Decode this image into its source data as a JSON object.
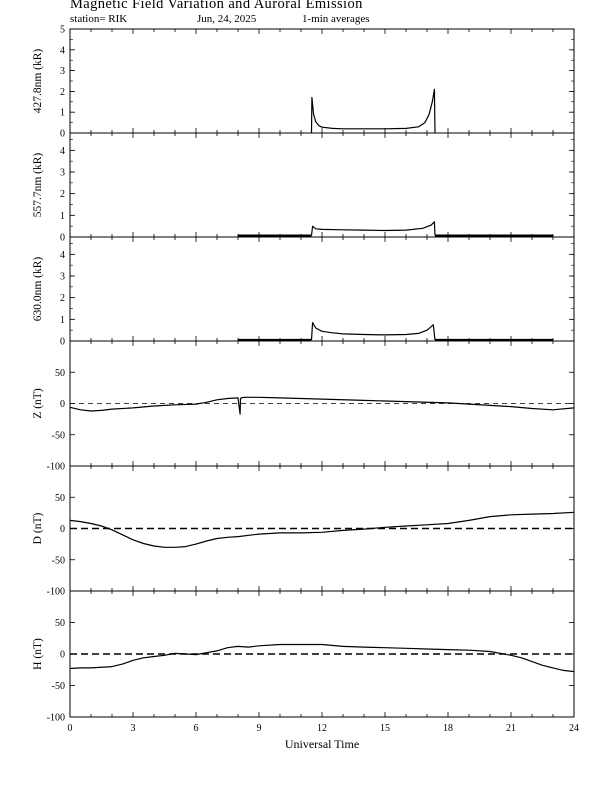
{
  "header": {
    "title": "Magnetic Field Variation and Auroral Emission",
    "station": "station= RIK",
    "date": "Jun, 24, 2025",
    "averaging": "1-min averages"
  },
  "chart_data": {
    "type": "line",
    "xlabel": "Universal Time",
    "x_ticks": [
      0,
      3,
      6,
      9,
      12,
      15,
      18,
      21,
      24
    ],
    "xlim": [
      0,
      24
    ],
    "panels": [
      {
        "id": "427",
        "ylabel": "427.8nm (kR)",
        "ylim": [
          0,
          5
        ],
        "y_ticks": [
          0,
          1,
          2,
          3,
          4,
          5
        ],
        "dashed_zero": false,
        "series": [
          {
            "x": [
              11.5,
              11.52,
              11.6,
              11.7,
              11.85,
              12.0,
              12.5,
              13,
              14,
              15,
              16,
              16.6,
              16.9,
              17.1,
              17.25,
              17.35,
              17.38
            ],
            "y": [
              0,
              1.7,
              0.9,
              0.55,
              0.35,
              0.28,
              0.22,
              0.2,
              0.2,
              0.2,
              0.22,
              0.3,
              0.5,
              0.9,
              1.5,
              2.1,
              0
            ]
          }
        ]
      },
      {
        "id": "557",
        "ylabel": "557.7nm (kR)",
        "ylim": [
          0,
          4.8
        ],
        "y_ticks": [
          0,
          1,
          2,
          3,
          4
        ],
        "dashed_zero": false,
        "series": [
          {
            "x": [
              8.0,
              11.5
            ],
            "y": [
              0.07,
              0.07
            ]
          },
          {
            "x": [
              11.5,
              11.55,
              11.7,
              12,
              13,
              14,
              15,
              16,
              16.8,
              17.2,
              17.35,
              17.38
            ],
            "y": [
              0.07,
              0.5,
              0.38,
              0.35,
              0.33,
              0.32,
              0.3,
              0.32,
              0.4,
              0.55,
              0.7,
              0.07
            ]
          },
          {
            "x": [
              17.38,
              23.0
            ],
            "y": [
              0.07,
              0.07
            ]
          }
        ]
      },
      {
        "id": "630",
        "ylabel": "630.0nm (kR)",
        "ylim": [
          0,
          4.8
        ],
        "y_ticks": [
          0,
          1,
          2,
          3,
          4
        ],
        "dashed_zero": false,
        "series": [
          {
            "x": [
              8.0,
              11.5
            ],
            "y": [
              0.05,
              0.05
            ]
          },
          {
            "x": [
              11.5,
              11.55,
              11.7,
              12,
              12.5,
              13,
              14,
              15,
              16,
              16.6,
              17.0,
              17.3,
              17.38
            ],
            "y": [
              0.05,
              0.85,
              0.6,
              0.45,
              0.38,
              0.33,
              0.3,
              0.28,
              0.3,
              0.35,
              0.5,
              0.75,
              0.05
            ]
          },
          {
            "x": [
              17.38,
              23.0
            ],
            "y": [
              0.05,
              0.05
            ]
          }
        ]
      },
      {
        "id": "Z",
        "ylabel": "Z (nT)",
        "ylim": [
          -100,
          100
        ],
        "y_ticks": [
          -100,
          -50,
          0,
          50
        ],
        "dashed_zero": true,
        "dash_style": "thin",
        "series": [
          {
            "x": [
              0,
              0.5,
              1,
              1.5,
              2,
              3,
              4,
              5,
              6,
              6.5,
              7,
              7.5,
              8,
              8.1,
              8.12,
              8.15,
              8.3,
              9,
              10,
              11,
              12,
              14,
              16,
              18,
              19,
              20,
              21,
              22,
              23,
              24
            ],
            "y": [
              -6,
              -10,
              -12,
              -11,
              -9,
              -7,
              -4,
              -2,
              -1,
              2,
              6,
              8,
              9,
              -17,
              8,
              9,
              10,
              10,
              9,
              8,
              7,
              5,
              3,
              1,
              -1,
              -3,
              -5,
              -8,
              -10,
              -7
            ]
          }
        ]
      },
      {
        "id": "D",
        "ylabel": "D (nT)",
        "ylim": [
          -100,
          100
        ],
        "y_ticks": [
          -100,
          -50,
          0,
          50
        ],
        "dashed_zero": true,
        "dash_style": "thick",
        "series": [
          {
            "x": [
              0,
              0.5,
              1,
              1.5,
              2,
              2.5,
              3,
              3.5,
              4,
              4.5,
              5,
              5.5,
              6,
              6.5,
              7,
              7.5,
              8,
              9,
              10,
              11,
              12,
              13,
              14,
              15,
              16,
              17,
              18,
              19,
              20,
              21,
              22,
              23,
              24
            ],
            "y": [
              13,
              11,
              8,
              4,
              -2,
              -10,
              -18,
              -24,
              -28,
              -30,
              -30,
              -29,
              -25,
              -20,
              -16,
              -14,
              -13,
              -9,
              -7,
              -7,
              -6,
              -3,
              -1,
              2,
              4,
              6,
              8,
              13,
              19,
              22,
              23,
              24,
              26
            ]
          }
        ]
      },
      {
        "id": "H",
        "ylabel": "H (nT)",
        "ylim": [
          -100,
          100
        ],
        "y_ticks": [
          -100,
          -50,
          0,
          50
        ],
        "dashed_zero": true,
        "dash_style": "thick",
        "series": [
          {
            "x": [
              0,
              0.5,
              1,
              2,
              2.5,
              3,
              3.5,
              4,
              4.5,
              5,
              5.5,
              6,
              6.5,
              7,
              7.5,
              8,
              8.5,
              9,
              10,
              11,
              12,
              13,
              14,
              15,
              16,
              17,
              18,
              19,
              20,
              21,
              21.5,
              22,
              22.5,
              23,
              23.5,
              24
            ],
            "y": [
              -23,
              -22,
              -22,
              -20,
              -16,
              -10,
              -6,
              -4,
              -2,
              1,
              0,
              -1,
              2,
              5,
              10,
              12,
              11,
              13,
              15,
              15,
              15,
              12,
              11,
              10,
              9,
              8,
              7,
              6,
              4,
              -2,
              -6,
              -12,
              -18,
              -22,
              -26,
              -28
            ]
          }
        ]
      }
    ]
  }
}
